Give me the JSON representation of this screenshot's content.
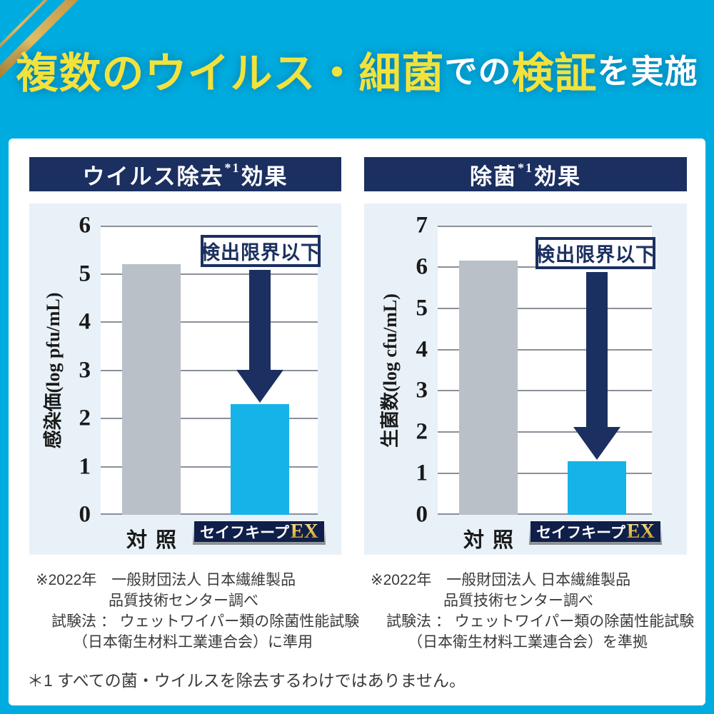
{
  "headline": {
    "part1": "複数のウイルス・細菌",
    "part2": "での",
    "part3": "検証",
    "part4": "を実施"
  },
  "colors": {
    "background_cyan": "#00acdf",
    "navy": "#1b3060",
    "bar_gray": "#b9c0c7",
    "bar_blue": "#15b3e7",
    "headline_yellow": "#f2e23c",
    "gold": "#e9c44f",
    "panel_light_blue": "#e8f1f8"
  },
  "bottom_note": "＊1 すべての菌・ウイルスを除去するわけではありません。",
  "chart_data": [
    {
      "type": "bar",
      "header": {
        "pre": "ウイルス除去",
        "sup": "*1",
        "post": "効果"
      },
      "ylabel": "感染価(log pfu/mL)",
      "ylim": [
        0,
        6
      ],
      "ymax": 6,
      "grid": true,
      "categories": [
        "対照",
        "セイフキープEX"
      ],
      "values": [
        5.2,
        2.3
      ],
      "annotation": "検出限界以下",
      "badge": {
        "kana": "セイフキープ",
        "ex": "EX"
      },
      "source": [
        "※2022年　一般財団法人 日本繊維製品",
        "品質技術センター調べ",
        "試験法 ： ウェットワイパー類の除菌性能試験",
        "（日本衛生材料工業連合会）に準用"
      ]
    },
    {
      "type": "bar",
      "header": {
        "pre": "除菌",
        "sup": "*1",
        "post": "効果"
      },
      "ylabel": "生菌数(log cfu/mL)",
      "ylim": [
        0,
        7
      ],
      "ymax": 7,
      "grid": true,
      "categories": [
        "対照",
        "セイフキープEX"
      ],
      "values": [
        6.15,
        1.3
      ],
      "annotation": "検出限界以下",
      "badge": {
        "kana": "セイフキープ",
        "ex": "EX"
      },
      "source": [
        "※2022年　一般財団法人 日本繊維製品",
        "品質技術センター調べ",
        "試験法 ： ウェットワイパー類の除菌性能試験",
        "（日本衛生材料工業連合会）を準拠"
      ]
    }
  ]
}
